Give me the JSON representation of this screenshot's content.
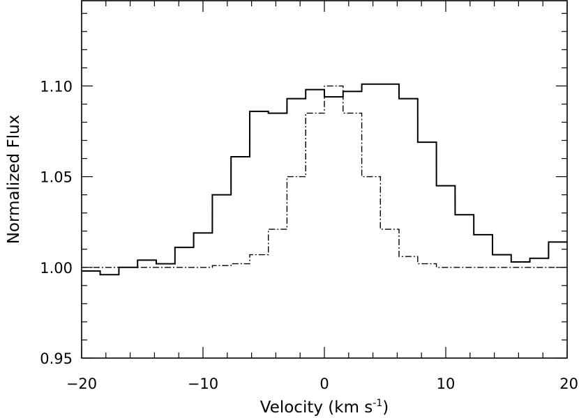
{
  "chart_data": {
    "type": "line",
    "title": "",
    "xlabel": "Velocity (km s",
    "xlabel_sup": "-1",
    "xlabel_end": ")",
    "ylabel": "Normalized Flux",
    "xlim": [
      -20,
      20
    ],
    "ylim": [
      0.95,
      1.147
    ],
    "xticks_major": [
      -20,
      -10,
      0,
      10,
      20
    ],
    "xtick_labels": [
      "−20",
      "−10",
      "0",
      "10",
      "20"
    ],
    "yticks_major": [
      0.95,
      1.0,
      1.05,
      1.1
    ],
    "ytick_labels": [
      "0.95",
      "1.00",
      "1.05",
      "1.10"
    ],
    "grid": false,
    "legend": "none",
    "bin_width": 1.538,
    "series": [
      {
        "style": "solid",
        "color": "#000000",
        "x": [
          -19.24,
          -17.7,
          -16.16,
          -14.62,
          -13.08,
          -11.54,
          -10.0,
          -8.46,
          -6.92,
          -5.38,
          -3.85,
          -2.31,
          -0.77,
          0.77,
          2.31,
          3.85,
          5.38,
          6.92,
          8.46,
          10.0,
          11.54,
          13.08,
          14.62,
          16.16,
          17.7,
          19.24
        ],
        "y": [
          0.998,
          0.996,
          1.0,
          1.004,
          1.002,
          1.011,
          1.019,
          1.04,
          1.061,
          1.086,
          1.085,
          1.093,
          1.098,
          1.094,
          1.097,
          1.101,
          1.101,
          1.093,
          1.069,
          1.045,
          1.029,
          1.018,
          1.007,
          1.003,
          1.005,
          1.014
        ]
      },
      {
        "style": "dash-dot",
        "color": "#000000",
        "x": [
          -19.24,
          -17.7,
          -16.16,
          -14.62,
          -13.08,
          -11.54,
          -10.0,
          -8.46,
          -6.92,
          -5.38,
          -3.85,
          -2.31,
          -0.77,
          0.77,
          2.31,
          3.85,
          5.38,
          6.92,
          8.46,
          10.0,
          11.54,
          13.08,
          14.62,
          16.16,
          17.7,
          19.24
        ],
        "y": [
          1.0,
          1.0,
          1.0,
          1.0,
          1.0,
          1.0,
          1.0,
          1.001,
          1.002,
          1.007,
          1.021,
          1.05,
          1.085,
          1.1,
          1.085,
          1.05,
          1.021,
          1.006,
          1.002,
          1.0,
          1.0,
          1.0,
          1.0,
          1.0,
          1.0,
          1.0
        ]
      }
    ]
  }
}
